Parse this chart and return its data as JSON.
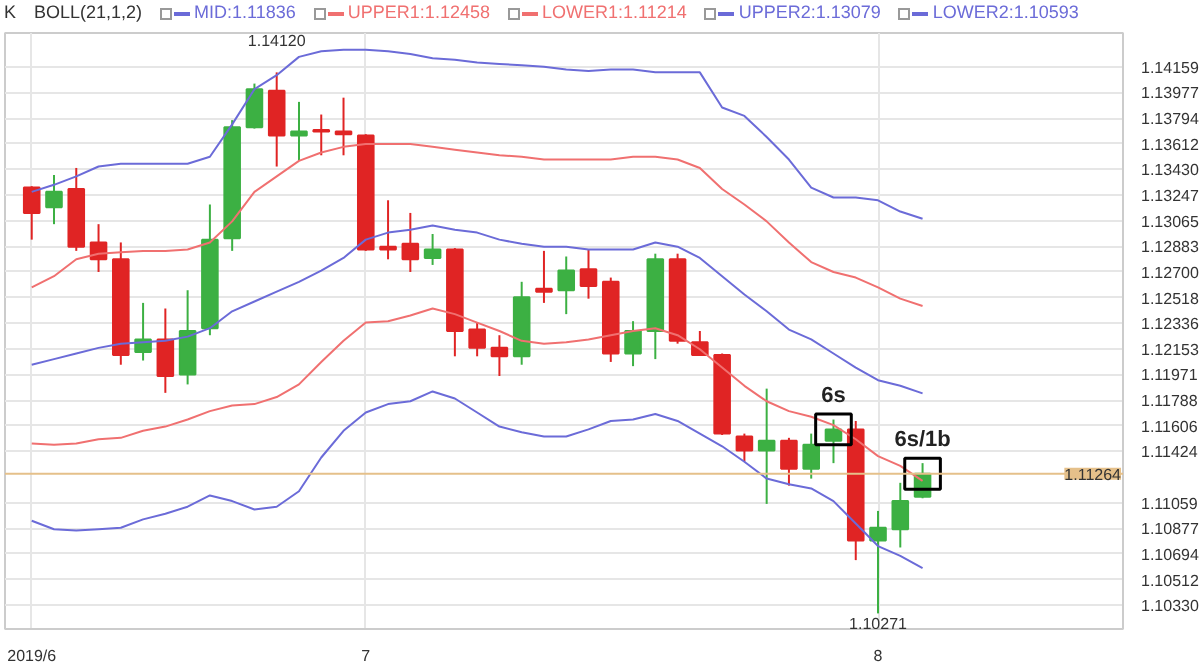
{
  "chart_data": {
    "type": "candlestick",
    "title": "BOLL(21,1,2)",
    "annotations": [
      "K",
      {
        "text": "1.14120",
        "y": 1.1412
      },
      {
        "text": "1.10271",
        "y": 1.10271
      },
      {
        "text": "6s",
        "y": 1.1158
      },
      {
        "text": "6s/1b",
        "y": 1.11264
      }
    ],
    "categories": [
      "2019/6",
      null,
      null,
      null,
      null,
      null,
      null,
      null,
      null,
      null,
      null,
      null,
      null,
      null,
      null,
      "7",
      null,
      null,
      null,
      null,
      null,
      null,
      null,
      null,
      null,
      null,
      null,
      null,
      null,
      null,
      null,
      null,
      null,
      null,
      null,
      null,
      null,
      null,
      "8",
      null,
      null
    ],
    "ohlc": [
      [
        1.133,
        1.1331,
        1.1293,
        1.1312
      ],
      [
        1.1316,
        1.1339,
        1.1304,
        1.1327
      ],
      [
        1.1329,
        1.1344,
        1.1285,
        1.1288
      ],
      [
        1.1291,
        1.1304,
        1.127,
        1.1279
      ],
      [
        1.1279,
        1.1291,
        1.1204,
        1.1211
      ],
      [
        1.1213,
        1.1248,
        1.1207,
        1.1222
      ],
      [
        1.1222,
        1.1244,
        1.1184,
        1.1196
      ],
      [
        1.1197,
        1.1257,
        1.119,
        1.1228
      ],
      [
        1.123,
        1.1318,
        1.1225,
        1.1293
      ],
      [
        1.1294,
        1.1378,
        1.1285,
        1.1373
      ],
      [
        1.1373,
        1.1404,
        1.1372,
        1.14
      ],
      [
        1.1399,
        1.1412,
        1.1345,
        1.1367
      ],
      [
        1.1367,
        1.1391,
        1.1349,
        1.137
      ],
      [
        1.1371,
        1.1382,
        1.1353,
        1.137
      ],
      [
        1.137,
        1.1394,
        1.1353,
        1.1368
      ],
      [
        1.1367,
        1.1368,
        1.1285,
        1.1286
      ],
      [
        1.1288,
        1.1321,
        1.1279,
        1.1286
      ],
      [
        1.129,
        1.1312,
        1.127,
        1.1279
      ],
      [
        1.128,
        1.1297,
        1.1275,
        1.1286
      ],
      [
        1.1286,
        1.1287,
        1.121,
        1.1228
      ],
      [
        1.1229,
        1.1234,
        1.121,
        1.1216
      ],
      [
        1.1216,
        1.1225,
        1.1196,
        1.121
      ],
      [
        1.121,
        1.1263,
        1.1204,
        1.1252
      ],
      [
        1.1258,
        1.1285,
        1.1248,
        1.1256
      ],
      [
        1.1257,
        1.1281,
        1.124,
        1.1271
      ],
      [
        1.1272,
        1.1286,
        1.1251,
        1.126
      ],
      [
        1.1263,
        1.1266,
        1.1206,
        1.1212
      ],
      [
        1.1212,
        1.1235,
        1.1203,
        1.1228
      ],
      [
        1.1228,
        1.1283,
        1.1208,
        1.1279
      ],
      [
        1.1279,
        1.1283,
        1.1219,
        1.1221
      ],
      [
        1.122,
        1.1228,
        1.1211,
        1.1211
      ],
      [
        1.1211,
        1.1212,
        1.1154,
        1.1155
      ],
      [
        1.1153,
        1.1155,
        1.1135,
        1.1143
      ],
      [
        1.1143,
        1.1187,
        1.1105,
        1.115
      ],
      [
        1.115,
        1.1152,
        1.1118,
        1.113
      ],
      [
        1.113,
        1.1155,
        1.1123,
        1.1147
      ],
      [
        1.115,
        1.1165,
        1.1134,
        1.1158
      ],
      [
        1.1158,
        1.1164,
        1.1065,
        1.1079
      ],
      [
        1.1079,
        1.11,
        1.10271,
        1.1088
      ],
      [
        1.1087,
        1.112,
        1.1074,
        1.1107
      ],
      [
        1.111,
        1.1134,
        1.1109,
        1.11264
      ]
    ],
    "colors": [
      "#e02424",
      "#3cb043",
      "#e02424",
      "#e02424",
      "#e02424",
      "#3cb043",
      "#e02424",
      "#3cb043",
      "#3cb043",
      "#3cb043",
      "#3cb043",
      "#e02424",
      "#3cb043",
      "#e02424",
      "#e02424",
      "#e02424",
      "#e02424",
      "#e02424",
      "#3cb043",
      "#e02424",
      "#e02424",
      "#e02424",
      "#3cb043",
      "#e02424",
      "#3cb043",
      "#e02424",
      "#e02424",
      "#3cb043",
      "#3cb043",
      "#e02424",
      "#e02424",
      "#e02424",
      "#e02424",
      "#3cb043",
      "#e02424",
      "#3cb043",
      "#3cb043",
      "#e02424",
      "#3cb043",
      "#3cb043",
      "#3cb043"
    ],
    "series": [
      {
        "name": "MID:1.11836",
        "type": "line",
        "color": "#6b6bd8",
        "values": [
          1.1204,
          1.1208,
          1.1212,
          1.1216,
          1.1219,
          1.122,
          1.1221,
          1.1224,
          1.123,
          1.1242,
          1.1249,
          1.1256,
          1.1263,
          1.1271,
          1.128,
          1.1293,
          1.1298,
          1.13,
          1.1303,
          1.13,
          1.1298,
          1.1293,
          1.129,
          1.1288,
          1.1288,
          1.1286,
          1.1286,
          1.1286,
          1.1291,
          1.1288,
          1.128,
          1.1267,
          1.1254,
          1.1242,
          1.1229,
          1.1222,
          1.1212,
          1.1202,
          1.1193,
          1.1189,
          1.11836
        ]
      },
      {
        "name": "UPPER1:1.12458",
        "type": "line",
        "color": "#f07070",
        "values": [
          1.1259,
          1.1267,
          1.1279,
          1.1283,
          1.1284,
          1.1285,
          1.1285,
          1.1286,
          1.1291,
          1.1306,
          1.1327,
          1.1338,
          1.1349,
          1.1355,
          1.1359,
          1.1361,
          1.1361,
          1.1361,
          1.1359,
          1.1357,
          1.1355,
          1.1353,
          1.1352,
          1.135,
          1.135,
          1.135,
          1.135,
          1.1352,
          1.1352,
          1.135,
          1.1344,
          1.1329,
          1.1318,
          1.1306,
          1.1291,
          1.1277,
          1.127,
          1.1266,
          1.1259,
          1.1251,
          1.12458
        ]
      },
      {
        "name": "LOWER1:1.11214",
        "type": "line",
        "color": "#f07070",
        "values": [
          1.1148,
          1.1147,
          1.1148,
          1.1151,
          1.1152,
          1.1157,
          1.116,
          1.1165,
          1.1171,
          1.1175,
          1.1176,
          1.1181,
          1.119,
          1.1206,
          1.1221,
          1.1234,
          1.1235,
          1.1239,
          1.1244,
          1.124,
          1.1234,
          1.1228,
          1.1221,
          1.1219,
          1.122,
          1.1222,
          1.1225,
          1.1228,
          1.123,
          1.1225,
          1.1215,
          1.1202,
          1.1189,
          1.1178,
          1.1171,
          1.1167,
          1.1161,
          1.1151,
          1.1139,
          1.1132,
          1.11214
        ]
      },
      {
        "name": "UPPER2:1.13079",
        "type": "line",
        "color": "#6b6bd8",
        "values": [
          1.1327,
          1.1332,
          1.1338,
          1.1345,
          1.1347,
          1.1347,
          1.1347,
          1.1347,
          1.1352,
          1.1375,
          1.14,
          1.141,
          1.1423,
          1.1427,
          1.1428,
          1.1428,
          1.1427,
          1.1425,
          1.1422,
          1.1421,
          1.1419,
          1.1418,
          1.1417,
          1.1416,
          1.1414,
          1.1413,
          1.1414,
          1.1414,
          1.1412,
          1.1412,
          1.1412,
          1.1387,
          1.1381,
          1.1366,
          1.135,
          1.133,
          1.1323,
          1.1323,
          1.1321,
          1.1313,
          1.13079
        ]
      },
      {
        "name": "LOWER2:1.10593",
        "type": "line",
        "color": "#6b6bd8",
        "values": [
          1.1093,
          1.1087,
          1.1086,
          1.1087,
          1.1088,
          1.1094,
          1.1098,
          1.1103,
          1.1111,
          1.1107,
          1.1101,
          1.1103,
          1.1114,
          1.1138,
          1.1157,
          1.117,
          1.1176,
          1.1178,
          1.1185,
          1.118,
          1.117,
          1.116,
          1.1156,
          1.1153,
          1.1153,
          1.1158,
          1.1164,
          1.1165,
          1.1169,
          1.1164,
          1.1155,
          1.1146,
          1.1135,
          1.1123,
          1.1119,
          1.1116,
          1.1107,
          1.1091,
          1.1075,
          1.1068,
          1.10593
        ]
      }
    ],
    "ylim": [
      1.1016,
      1.144
    ],
    "yticks": [
      {
        "value": 1.1033,
        "label": "1.10330"
      },
      1.10512,
      1.10694,
      1.10877,
      1.11059,
      1.11424,
      1.11606,
      1.11788,
      1.11971,
      1.12153,
      1.12336,
      1.12518,
      {
        "value": 1.127,
        "label": "1.12700"
      },
      1.12883,
      1.13065,
      1.13247,
      {
        "value": 1.1343,
        "label": "1.13430"
      },
      1.13612,
      1.13794,
      1.13977,
      1.14159
    ],
    "ref_lines": [
      {
        "axis": "y",
        "value": 1.11264,
        "label": "1.11264",
        "color": "#e5c08a"
      }
    ],
    "grid": true,
    "legend": "top"
  }
}
